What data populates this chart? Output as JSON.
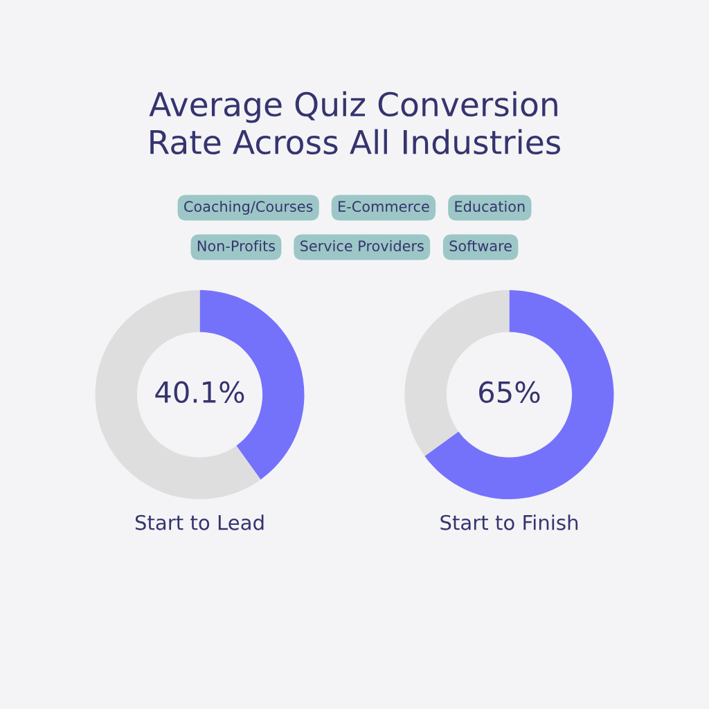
{
  "chart_data": [
    {
      "type": "other",
      "title": "Average Quiz Conversion\nRate Across All Industries",
      "annotations": [
        "Coaching/Courses",
        "E-Commerce",
        "Education",
        "Non-Profits",
        "Service Providers",
        "Software"
      ]
    },
    {
      "type": "donut",
      "categories": [
        null,
        null
      ],
      "values": [
        40.1,
        59.9
      ],
      "colors": [
        "#7472fb",
        "#dedede"
      ],
      "value_labels": [
        "40.1%",
        null
      ],
      "xlabel": "Start to Lead"
    },
    {
      "type": "donut",
      "categories": [
        null,
        null
      ],
      "values": [
        65,
        35
      ],
      "colors": [
        "#7472fb",
        "#dedede"
      ],
      "value_labels": [
        "65%",
        null
      ],
      "xlabel": "Start to Finish"
    }
  ]
}
